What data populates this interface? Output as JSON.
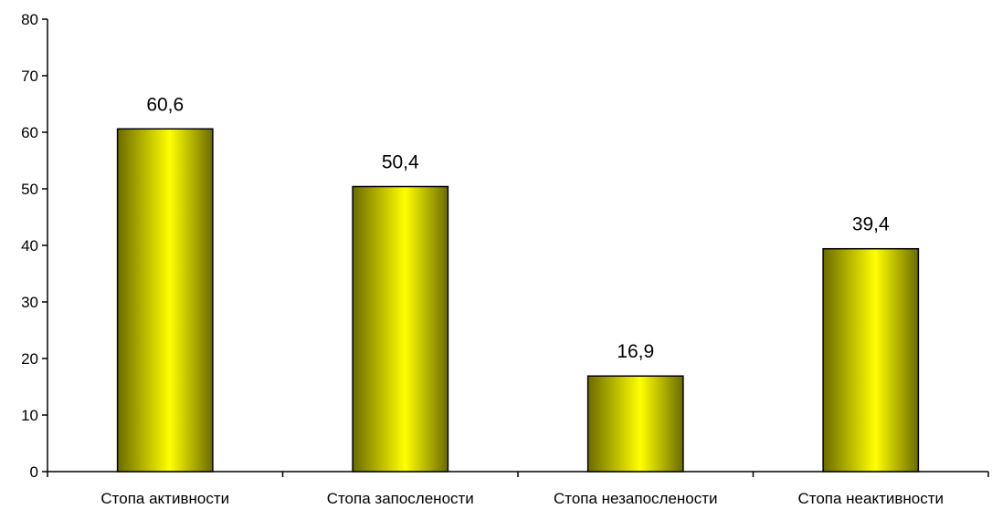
{
  "chart_data": {
    "type": "bar",
    "categories": [
      "Стопа активности",
      "Стопа запослености",
      "Стопа незапослености",
      "Стопа неактивности"
    ],
    "values": [
      60.6,
      50.4,
      16.9,
      39.4
    ],
    "data_labels": [
      "60,6",
      "50,4",
      "16,9",
      "39,4"
    ],
    "yticks": [
      "0",
      "10",
      "20",
      "30",
      "40",
      "50",
      "60",
      "70",
      "80"
    ],
    "ylim": [
      0,
      80
    ],
    "title": "",
    "xlabel": "",
    "ylabel": "",
    "grid": false,
    "legend": "none",
    "bar_color": "#ffff00",
    "bar_shade_color": "#6b6b00",
    "bar_border_color": "#000000"
  }
}
